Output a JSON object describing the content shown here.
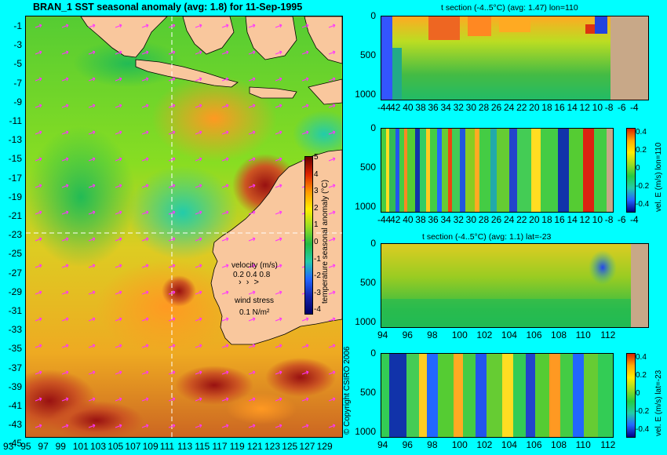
{
  "map": {
    "title": "BRAN_1  SST seasonal anomaly  (avg: 1.8) for 11-Sep-1995",
    "lat_ticks": [
      "-1",
      "-3",
      "-5",
      "-7",
      "-9",
      "-11",
      "-13",
      "-15",
      "-17",
      "-19",
      "-21",
      "-23",
      "-25",
      "-27",
      "-29",
      "-31",
      "-33",
      "-35",
      "-37",
      "-39",
      "-41",
      "-43",
      "-45"
    ],
    "lon_ticks": [
      "93",
      "95",
      "97",
      "99",
      "101",
      "103",
      "105",
      "107",
      "109",
      "111",
      "113",
      "115",
      "117",
      "119",
      "121",
      "123",
      "125",
      "127",
      "129"
    ],
    "colorbar_label": "temperature seasonal anomaly (°C)",
    "colorbar_ticks": [
      "5",
      "4",
      "3",
      "2",
      "1",
      "0",
      "-1",
      "-2",
      "-3",
      "-4"
    ],
    "velocity_label": "velocity (m/s)",
    "velocity_scale": "0.2 0.4 0.8",
    "wind_label": "wind stress",
    "wind_scale": "0.1 N/m²",
    "copyright": "© Copyright CSIRO 2006"
  },
  "panels": [
    {
      "title": "t section (-4..5°C) (avg: 1.47) lon=110",
      "y_ticks": [
        "0",
        "500",
        "1000"
      ],
      "x_ticks": [
        "-44",
        "42",
        "40",
        "38",
        "36",
        "34",
        "32",
        "30",
        "28",
        "26",
        "24",
        "22",
        "20",
        "18",
        "16",
        "14",
        "12",
        "10",
        "-8",
        "-6",
        "-4"
      ]
    },
    {
      "title": "",
      "y_ticks": [
        "0",
        "500",
        "1000"
      ],
      "x_ticks": [
        "-44",
        "42",
        "40",
        "38",
        "36",
        "34",
        "32",
        "30",
        "28",
        "26",
        "24",
        "22",
        "20",
        "18",
        "16",
        "14",
        "12",
        "10",
        "-8",
        "-6",
        "-4"
      ],
      "colorbar_label": "vel. E (m/s) lon=110",
      "colorbar_ticks": [
        "0.4",
        "0.2",
        "0",
        "-0.2",
        "-0.4"
      ]
    },
    {
      "title": "t section (-4..5°C) (avg: 1.1) lat=-23",
      "y_ticks": [
        "0",
        "500",
        "1000"
      ],
      "x_ticks": [
        "94",
        "96",
        "98",
        "100",
        "102",
        "104",
        "106",
        "108",
        "110",
        "112"
      ]
    },
    {
      "title": "",
      "y_ticks": [
        "0",
        "500",
        "1000"
      ],
      "x_ticks": [
        "94",
        "96",
        "98",
        "100",
        "102",
        "104",
        "106",
        "108",
        "110",
        "112"
      ],
      "colorbar_label": "vel. E (m/s) lat=-23",
      "colorbar_ticks": [
        "0.4",
        "0.2",
        "0",
        "-0.2",
        "-0.4"
      ]
    }
  ],
  "colors": {
    "background": "#00ffff",
    "land": "#f9c79d",
    "section_land": "#c8a888",
    "crosshair": "#ffffff",
    "arrows": "#ff33ff"
  }
}
